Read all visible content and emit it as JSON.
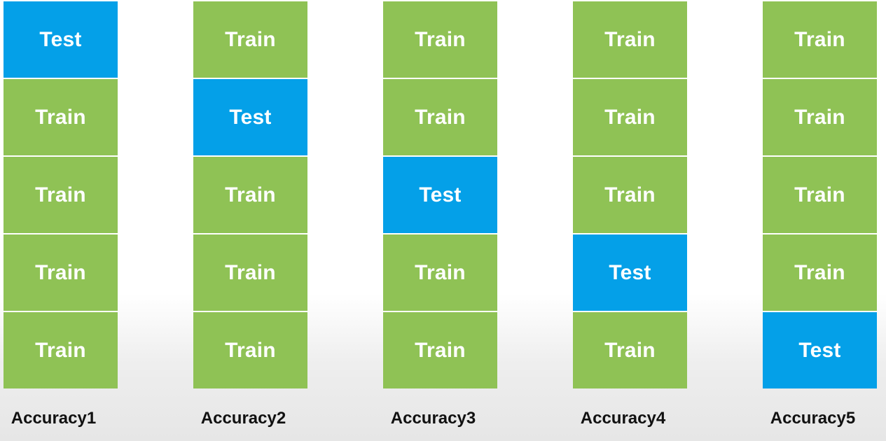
{
  "folds": [
    {
      "blocks": [
        "Test",
        "Train",
        "Train",
        "Train",
        "Train"
      ],
      "label": "Accuracy1"
    },
    {
      "blocks": [
        "Train",
        "Test",
        "Train",
        "Train",
        "Train"
      ],
      "label": "Accuracy2"
    },
    {
      "blocks": [
        "Train",
        "Train",
        "Test",
        "Train",
        "Train"
      ],
      "label": "Accuracy3"
    },
    {
      "blocks": [
        "Train",
        "Train",
        "Train",
        "Test",
        "Train"
      ],
      "label": "Accuracy4"
    },
    {
      "blocks": [
        "Train",
        "Train",
        "Train",
        "Train",
        "Test"
      ],
      "label": "Accuracy5"
    }
  ],
  "colors": {
    "train": "#8fc255",
    "test": "#04a0e8",
    "text": "#ffffff",
    "label": "#111111"
  }
}
